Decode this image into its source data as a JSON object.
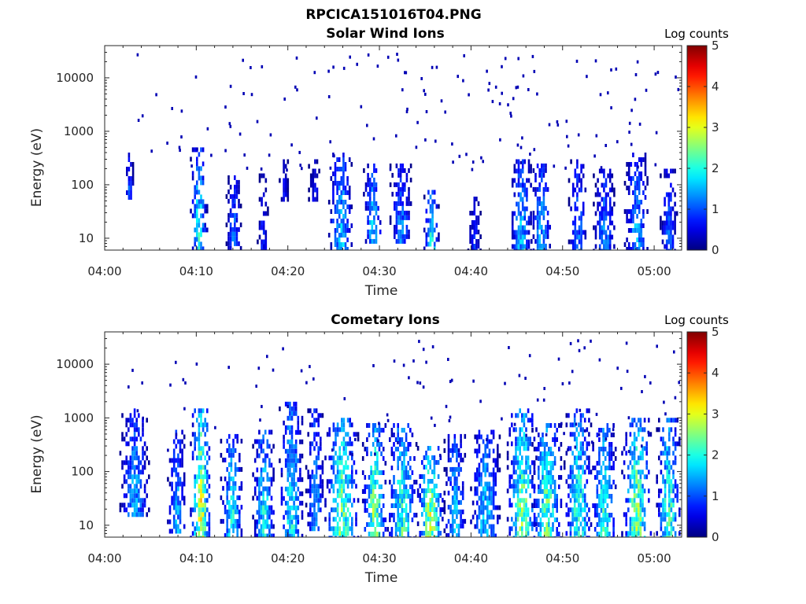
{
  "figure": {
    "title": "RPCICA151016T04.PNG"
  },
  "chart_data": [
    {
      "type": "heatmap",
      "title": "Solar Wind Ions",
      "xlabel": "Time",
      "ylabel": "Energy (eV)",
      "x_ticks": [
        "04:00",
        "04:10",
        "04:20",
        "04:30",
        "04:40",
        "04:50",
        "05:00"
      ],
      "xlim_minutes": [
        0,
        63
      ],
      "y_scale": "log",
      "ylim": [
        6,
        40000
      ],
      "y_ticks": [
        10,
        100,
        1000,
        10000
      ],
      "y_tick_labels": [
        "10",
        "100",
        "1000",
        "10000"
      ],
      "colorbar": {
        "label": "Log counts",
        "range": [
          0,
          5
        ],
        "ticks": [
          "0",
          "1",
          "2",
          "3",
          "4",
          "5"
        ],
        "colormap": "jet"
      },
      "bursts": [
        {
          "t": 2.6,
          "w": 0.5,
          "emin": 60,
          "emax": 400,
          "peak": 1.3
        },
        {
          "t": 10.2,
          "w": 0.9,
          "emin": 6,
          "emax": 500,
          "peak": 2.3
        },
        {
          "t": 14.0,
          "w": 0.8,
          "emin": 6,
          "emax": 150,
          "peak": 1.5
        },
        {
          "t": 17.2,
          "w": 0.6,
          "emin": 6,
          "emax": 200,
          "peak": 1.0
        },
        {
          "t": 19.5,
          "w": 0.5,
          "emin": 50,
          "emax": 300,
          "peak": 1.0
        },
        {
          "t": 22.8,
          "w": 0.6,
          "emin": 50,
          "emax": 300,
          "peak": 1.0
        },
        {
          "t": 25.7,
          "w": 1.3,
          "emin": 6,
          "emax": 400,
          "peak": 2.0
        },
        {
          "t": 29.2,
          "w": 1.0,
          "emin": 8,
          "emax": 250,
          "peak": 2.0
        },
        {
          "t": 32.3,
          "w": 1.2,
          "emin": 8,
          "emax": 250,
          "peak": 1.6
        },
        {
          "t": 35.6,
          "w": 0.8,
          "emin": 6,
          "emax": 80,
          "peak": 2.4
        },
        {
          "t": 40.3,
          "w": 0.7,
          "emin": 6,
          "emax": 60,
          "peak": 1.1
        },
        {
          "t": 45.4,
          "w": 1.2,
          "emin": 6,
          "emax": 300,
          "peak": 1.9
        },
        {
          "t": 47.6,
          "w": 1.1,
          "emin": 6,
          "emax": 250,
          "peak": 1.8
        },
        {
          "t": 51.6,
          "w": 1.0,
          "emin": 6,
          "emax": 300,
          "peak": 1.5
        },
        {
          "t": 54.5,
          "w": 1.2,
          "emin": 6,
          "emax": 200,
          "peak": 1.6
        },
        {
          "t": 58.0,
          "w": 1.3,
          "emin": 6,
          "emax": 400,
          "peak": 1.8
        },
        {
          "t": 61.5,
          "w": 0.9,
          "emin": 6,
          "emax": 200,
          "peak": 1.4
        }
      ],
      "scatter_density": 0.9
    },
    {
      "type": "heatmap",
      "title": "Cometary Ions",
      "xlabel": "Time",
      "ylabel": "Energy (eV)",
      "x_ticks": [
        "04:00",
        "04:10",
        "04:20",
        "04:30",
        "04:40",
        "04:50",
        "05:00"
      ],
      "xlim_minutes": [
        0,
        63
      ],
      "y_scale": "log",
      "ylim": [
        6,
        40000
      ],
      "y_ticks": [
        10,
        100,
        1000,
        10000
      ],
      "y_tick_labels": [
        "10",
        "100",
        "1000",
        "10000"
      ],
      "colorbar": {
        "label": "Log counts",
        "range": [
          0,
          5
        ],
        "ticks": [
          "0",
          "1",
          "2",
          "3",
          "4",
          "5"
        ],
        "colormap": "jet"
      },
      "bursts": [
        {
          "t": 3.2,
          "w": 1.6,
          "emin": 15,
          "emax": 1500,
          "peak": 1.8
        },
        {
          "t": 7.8,
          "w": 1.0,
          "emin": 8,
          "emax": 600,
          "peak": 1.8
        },
        {
          "t": 10.4,
          "w": 1.1,
          "emin": 6,
          "emax": 1500,
          "peak": 3.4
        },
        {
          "t": 13.8,
          "w": 1.2,
          "emin": 6,
          "emax": 500,
          "peak": 2.3
        },
        {
          "t": 17.3,
          "w": 1.2,
          "emin": 6,
          "emax": 600,
          "peak": 2.3
        },
        {
          "t": 20.3,
          "w": 1.3,
          "emin": 6,
          "emax": 2000,
          "peak": 2.3
        },
        {
          "t": 22.9,
          "w": 1.0,
          "emin": 8,
          "emax": 1500,
          "peak": 1.8
        },
        {
          "t": 25.8,
          "w": 1.8,
          "emin": 6,
          "emax": 1000,
          "peak": 2.9
        },
        {
          "t": 29.4,
          "w": 1.3,
          "emin": 6,
          "emax": 800,
          "peak": 3.0
        },
        {
          "t": 32.4,
          "w": 1.6,
          "emin": 6,
          "emax": 800,
          "peak": 2.6
        },
        {
          "t": 35.5,
          "w": 1.4,
          "emin": 6,
          "emax": 300,
          "peak": 3.3
        },
        {
          "t": 38.2,
          "w": 1.2,
          "emin": 6,
          "emax": 500,
          "peak": 2.0
        },
        {
          "t": 41.5,
          "w": 1.6,
          "emin": 6,
          "emax": 600,
          "peak": 2.1
        },
        {
          "t": 45.5,
          "w": 1.6,
          "emin": 6,
          "emax": 1500,
          "peak": 2.9
        },
        {
          "t": 48.2,
          "w": 1.6,
          "emin": 6,
          "emax": 800,
          "peak": 2.8
        },
        {
          "t": 51.6,
          "w": 1.5,
          "emin": 6,
          "emax": 1500,
          "peak": 2.6
        },
        {
          "t": 54.4,
          "w": 1.4,
          "emin": 6,
          "emax": 800,
          "peak": 2.5
        },
        {
          "t": 58.0,
          "w": 1.6,
          "emin": 6,
          "emax": 1000,
          "peak": 3.0
        },
        {
          "t": 61.5,
          "w": 1.3,
          "emin": 6,
          "emax": 1000,
          "peak": 2.6
        }
      ],
      "scatter_density": 0.6
    }
  ]
}
